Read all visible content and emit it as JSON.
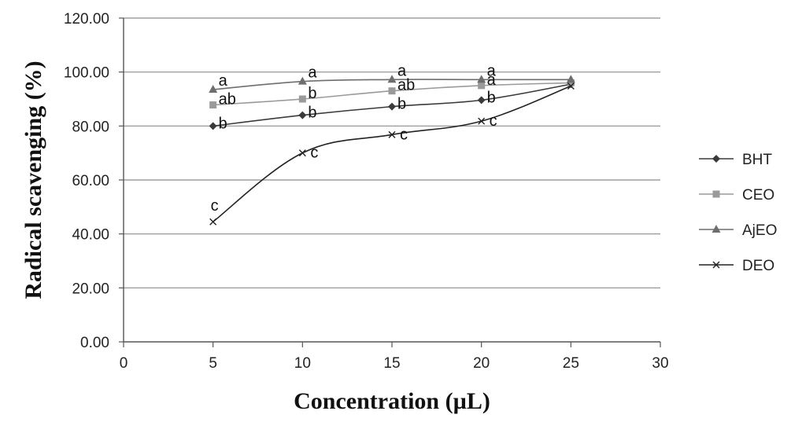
{
  "chart_data": {
    "type": "line",
    "title": "",
    "xlabel": "Concentration (µL)",
    "ylabel": "Radical scavenging (%)",
    "xlim": [
      0,
      30
    ],
    "ylim": [
      0,
      120
    ],
    "x_ticks": [
      "0",
      "5",
      "10",
      "15",
      "20",
      "25",
      "30"
    ],
    "y_ticks": [
      "0.00",
      "20.00",
      "40.00",
      "60.00",
      "80.00",
      "100.00",
      "120.00"
    ],
    "grid": "horizontal",
    "legend_position": "right",
    "x": [
      5,
      10,
      15,
      20,
      25
    ],
    "series": [
      {
        "name": "BHT",
        "marker": "diamond",
        "color": "#3a3a3a",
        "values": [
          80.0,
          84.0,
          87.2,
          89.6,
          95.5
        ],
        "labels": [
          "b",
          "b",
          "b",
          "b",
          ""
        ]
      },
      {
        "name": "CEO",
        "marker": "square",
        "color": "#9a9a9a",
        "values": [
          87.8,
          90.0,
          93.0,
          95.0,
          96.0
        ],
        "labels": [
          "ab",
          "b",
          "ab",
          "a",
          ""
        ]
      },
      {
        "name": "AjEO",
        "marker": "triangle",
        "color": "#6e6e6e",
        "values": [
          93.5,
          96.5,
          97.2,
          97.2,
          97.2
        ],
        "labels": [
          "a",
          "a",
          "a",
          "a",
          ""
        ]
      },
      {
        "name": "DEO",
        "marker": "x",
        "color": "#222222",
        "values": [
          44.5,
          70.0,
          76.8,
          81.8,
          94.8
        ],
        "labels": [
          "c",
          "c",
          "c",
          "c",
          ""
        ]
      }
    ]
  }
}
